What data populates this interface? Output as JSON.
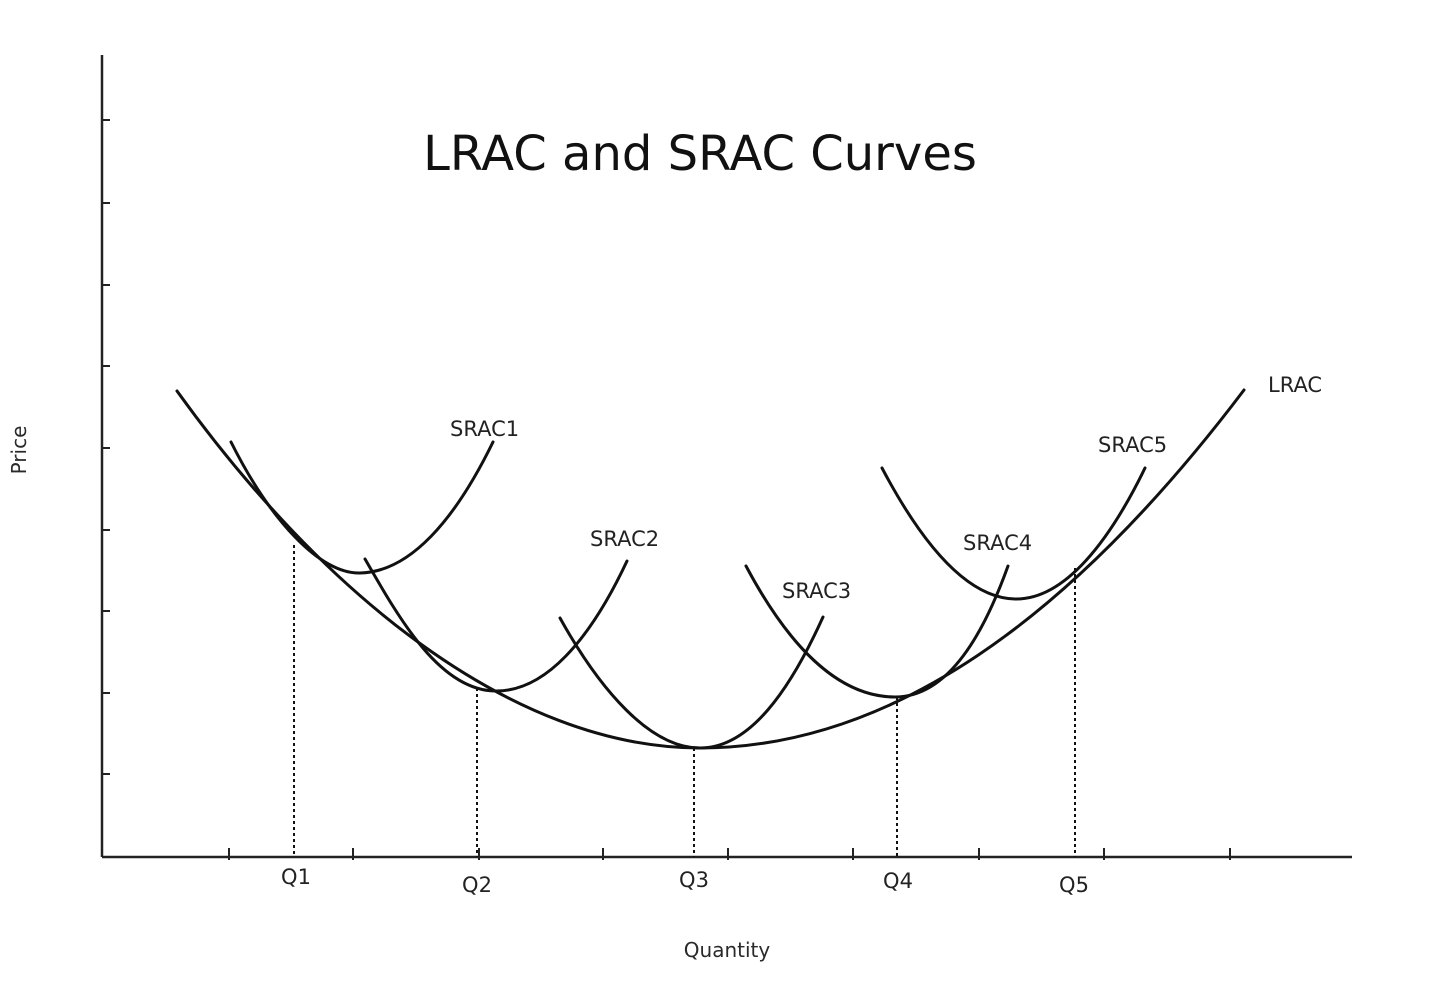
{
  "chart_data": {
    "type": "line",
    "title": "LRAC and SRAC Curves",
    "xlabel": "Quantity",
    "ylabel": "Price",
    "x_tick_labels": [
      "Q1",
      "Q2",
      "Q3",
      "Q4",
      "Q5"
    ],
    "grid": false,
    "curve_labels": [
      "LRAC",
      "SRAC1",
      "SRAC2",
      "SRAC3",
      "SRAC4",
      "SRAC5"
    ],
    "tangency_quantities": [
      "Q1",
      "Q2",
      "Q3",
      "Q4",
      "Q5"
    ],
    "line_color": "#111111"
  }
}
